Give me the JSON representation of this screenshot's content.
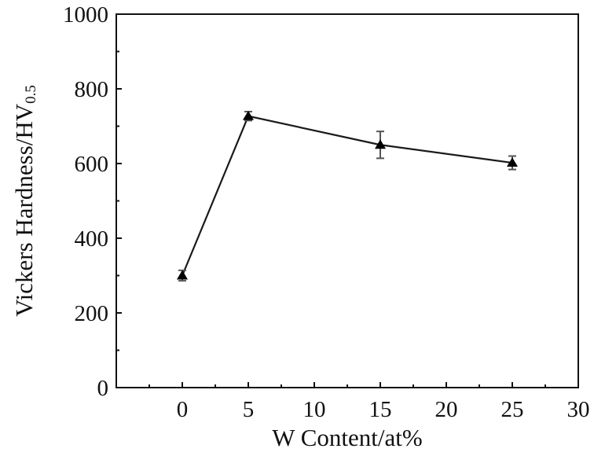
{
  "chart_data": {
    "type": "line",
    "title": "",
    "xlabel": "W Content/at%",
    "ylabel": "Vickers Hardness/HV",
    "ylabel_subscript": "0.5",
    "xlim": [
      -5,
      30
    ],
    "ylim": [
      0,
      1000
    ],
    "xticks": [
      0,
      5,
      10,
      15,
      20,
      25,
      30
    ],
    "yticks": [
      0,
      200,
      400,
      600,
      800,
      1000
    ],
    "yminor_step": 100,
    "xtick_labels": [
      "0",
      "5",
      "10",
      "15",
      "20",
      "25",
      "30"
    ],
    "ytick_labels": [
      "0",
      "200",
      "400",
      "600",
      "800",
      "1000"
    ],
    "grid": false,
    "legend": "none",
    "marker": "triangle",
    "series": [
      {
        "x": [
          0,
          5,
          15,
          25
        ],
        "y": [
          300,
          727,
          650,
          602
        ],
        "error": [
          14,
          12,
          36,
          18
        ]
      }
    ],
    "colors": {
      "line": "#1a1a1a",
      "marker": "#000000",
      "errorbar": "#555555",
      "axis": "#111111"
    }
  }
}
